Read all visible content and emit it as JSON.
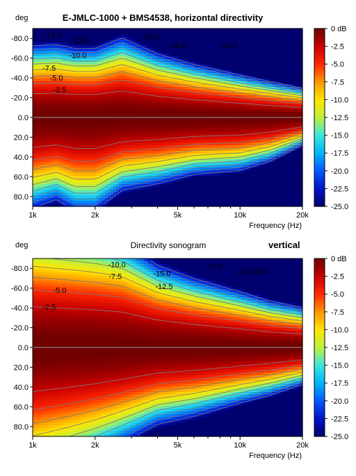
{
  "chart_data": [
    {
      "type": "heatmap",
      "title": "E-JMLC-1000 + BMS4538, horizontal directivity",
      "subtitle": "",
      "ylabel": "deg",
      "xlabel": "Frequency (Hz)",
      "xscale": "log",
      "xlim": [
        1000,
        20000
      ],
      "ylim": [
        -90,
        90
      ],
      "x_ticks": [
        "1k",
        "2k",
        "5k",
        "10k",
        "20k"
      ],
      "y_ticks": [
        "-80.0",
        "-60.0",
        "-40.0",
        "-20.0",
        "0.0",
        "20.0",
        "40.0",
        "60.0",
        "80.0"
      ],
      "colorbar_ticks": [
        "0 dB",
        "-2.5",
        "-5.0",
        "-7.5",
        "-10.0",
        "-12.5",
        "-15.0",
        "-17.5",
        "-20.0",
        "-22.5",
        "-25.0"
      ],
      "contour_labels": [
        {
          "text": "-17.5",
          "x": 1250,
          "y": -83
        },
        {
          "text": "-12.5",
          "x": 1700,
          "y": -78
        },
        {
          "text": "-10.0",
          "x": 1650,
          "y": -63
        },
        {
          "text": "-7.5",
          "x": 1200,
          "y": -50
        },
        {
          "text": "-5.0",
          "x": 1300,
          "y": -40
        },
        {
          "text": "-2.5",
          "x": 1350,
          "y": -28
        },
        {
          "text": "-20.0",
          "x": 3700,
          "y": -82
        },
        {
          "text": "-15.0",
          "x": 5000,
          "y": -73
        },
        {
          "text": "-22.5",
          "x": 8800,
          "y": -73
        }
      ],
      "contour_levels": [
        -2.5,
        -5,
        -7.5,
        -10,
        -12.5,
        -15,
        -17.5,
        -20,
        -22.5
      ],
      "zlim": [
        -25,
        0
      ],
      "beamwidth_model": {
        "freq": [
          1000,
          1300,
          1600,
          2000,
          2700,
          4000,
          6000,
          10000,
          14000,
          20000
        ],
        "upper_deg": [
          54,
          55,
          52,
          52,
          60,
          48,
          40,
          32,
          27,
          22
        ],
        "lower_deg": [
          68,
          62,
          70,
          70,
          55,
          50,
          43,
          40,
          33,
          21
        ]
      },
      "grid": false,
      "legend": "colorbar-right"
    },
    {
      "type": "heatmap",
      "title": "Directivity sonogram",
      "subtitle": "vertical",
      "ylabel": "deg",
      "xlabel": "Frequency (Hz)",
      "xscale": "log",
      "xlim": [
        1000,
        20000
      ],
      "ylim": [
        -90,
        90
      ],
      "x_ticks": [
        "1k",
        "2k",
        "5k",
        "10k",
        "20k"
      ],
      "y_ticks": [
        "-80.0",
        "-60.0",
        "-40.0",
        "-20.0",
        "0.0",
        "20.0",
        "40.0",
        "60.0",
        "80.0"
      ],
      "colorbar_ticks": [
        "0 dB",
        "-2.5",
        "-5.0",
        "-7.5",
        "-10.0",
        "-12.5",
        "-15.0",
        "-17.5",
        "-20.0",
        "-22.5",
        "-25.0"
      ],
      "contour_labels": [
        {
          "text": "-10.0",
          "x": 2550,
          "y": -84
        },
        {
          "text": "-7.5",
          "x": 2500,
          "y": -72
        },
        {
          "text": "-5.0",
          "x": 1350,
          "y": -58
        },
        {
          "text": "-2.5",
          "x": 1200,
          "y": -41
        },
        {
          "text": "-15.0",
          "x": 4200,
          "y": -75
        },
        {
          "text": "-12.5",
          "x": 4300,
          "y": -62
        },
        {
          "text": "-17.5",
          "x": 7500,
          "y": -82
        },
        {
          "text": "-20.0",
          "x": 10500,
          "y": -77
        },
        {
          "text": "-22.5",
          "x": 12500,
          "y": -77
        }
      ],
      "contour_levels": [
        -2.5,
        -5,
        -7.5,
        -10,
        -12.5,
        -15,
        -17.5,
        -20,
        -22.5
      ],
      "zlim": [
        -25,
        0
      ],
      "beamwidth_model": {
        "freq": [
          1000,
          1500,
          2000,
          2700,
          4000,
          6000,
          10000,
          14000,
          20000
        ],
        "upper_deg": [
          92,
          88,
          85,
          80,
          62,
          52,
          42,
          35,
          30
        ],
        "lower_deg": [
          100,
          90,
          82,
          72,
          58,
          52,
          42,
          36,
          28
        ]
      },
      "grid": false,
      "legend": "colorbar-right"
    }
  ]
}
